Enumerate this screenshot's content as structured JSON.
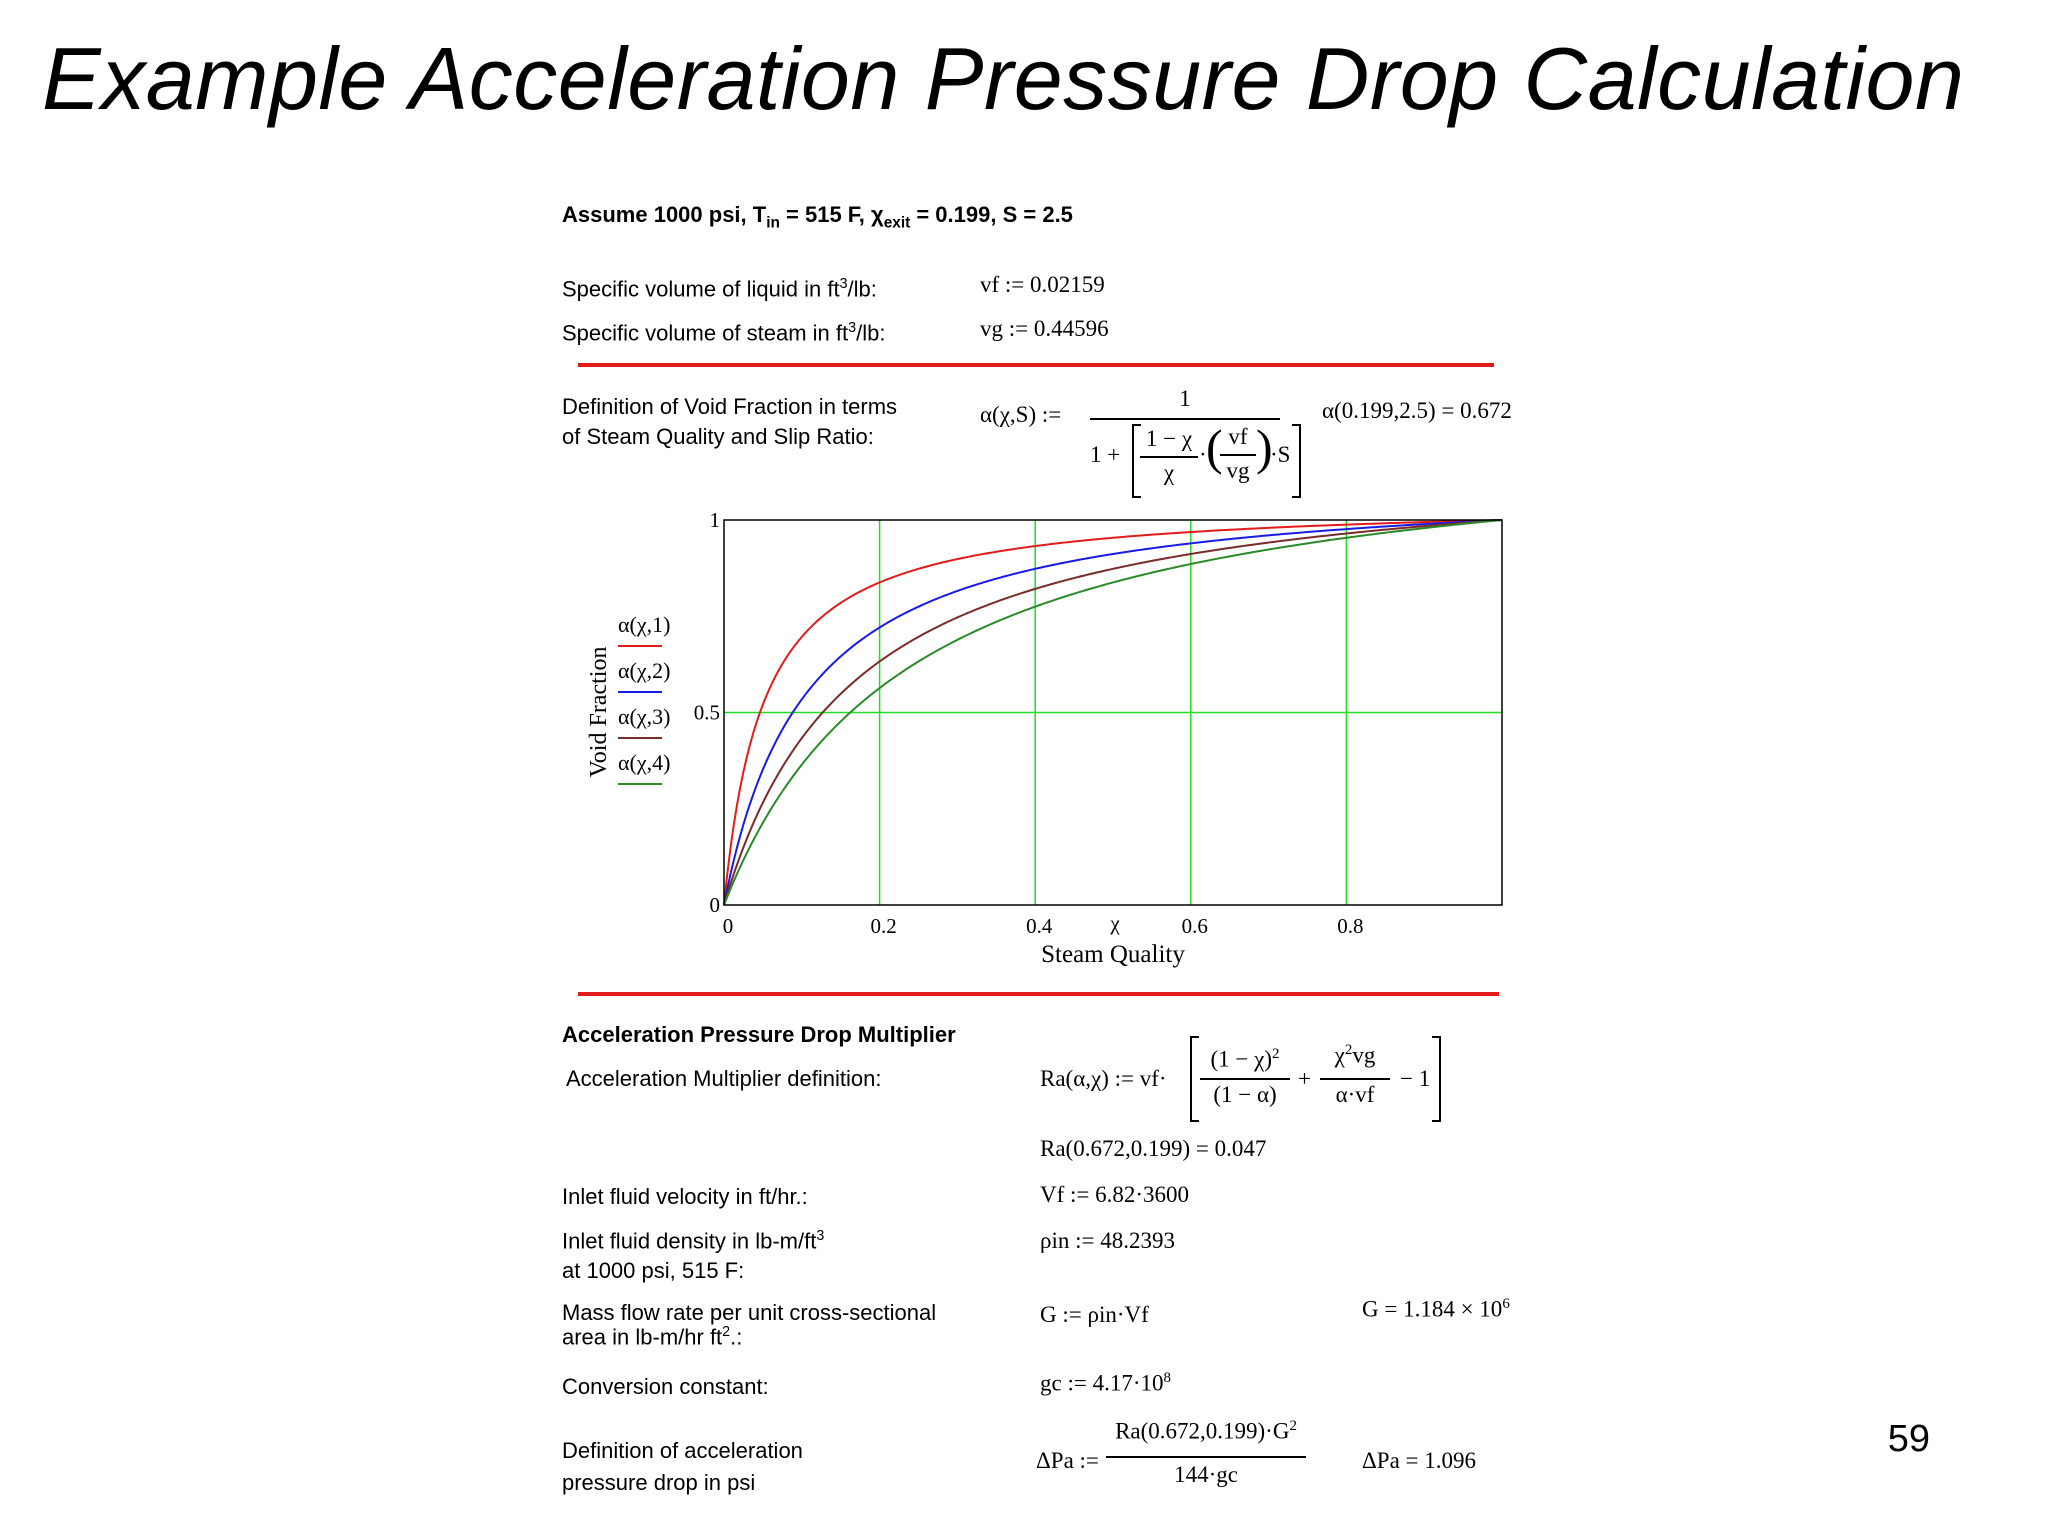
{
  "title": "Example Acceleration Pressure Drop Calculation",
  "page_number": "59",
  "assume": {
    "prefix": "Assume 1000 psi, T",
    "tin_sub": "in",
    "mid": " = 515 F, ",
    "chi": "χ",
    "exit_sub": "exit",
    "rest": " = 0.199, S = 2.5"
  },
  "liquid": {
    "label": "Specific volume of liquid in ft",
    "sup": "3",
    "suffix": "/lb:",
    "eq": "vf := 0.02159"
  },
  "steam": {
    "label": "Specific volume of steam in ft",
    "sup": "3",
    "suffix": "/lb:",
    "eq": "vg := 0.44596"
  },
  "void_def": {
    "label_line1": "Definition of Void Fraction in terms",
    "label_line2": "of Steam Quality and Slip Ratio:",
    "lhs": "α(χ,S) :=",
    "num": "1",
    "one_plus": "1 +",
    "frac_num": "1 − χ",
    "frac_den": "χ",
    "vf": "vf",
    "vg": "vg",
    "dot": "·",
    "s": "·S",
    "result": "α(0.199,2.5) = 0.672"
  },
  "chart_data": {
    "type": "line",
    "xlabel": "Steam Quality",
    "xvar": "χ",
    "ylabel": "Void Fraction",
    "xlim": [
      0,
      1
    ],
    "ylim": [
      0,
      1
    ],
    "x_ticks": [
      "0",
      "0.2",
      "0.4",
      "0.6",
      "0.8"
    ],
    "y_ticks": [
      "0",
      "0.5",
      "1"
    ],
    "grid": true,
    "legend_position": "left",
    "vf": 0.02159,
    "vg": 0.44596,
    "series": [
      {
        "name": "α(χ,1)",
        "slip": 1,
        "color": "#e31b1b"
      },
      {
        "name": "α(χ,2)",
        "slip": 2,
        "color": "#1a1ae6"
      },
      {
        "name": "α(χ,3)",
        "slip": 3,
        "color": "#7a2b2b"
      },
      {
        "name": "α(χ,4)",
        "slip": 4,
        "color": "#2a8a2a"
      }
    ],
    "colors": {
      "grid": "#22dd22",
      "frame": "#000000"
    }
  },
  "accel": {
    "heading": "Acceleration Pressure Drop Multiplier",
    "def_label": "Acceleration Multiplier definition:",
    "lhs": "Ra(α,χ) := vf·",
    "t1_num": "(1 − χ)",
    "t1_num_sup": "2",
    "t1_den": "(1 − α)",
    "plus": "+",
    "t2_num": "χ",
    "t2_num_sup": "2",
    "t2_num_rest": "vg",
    "t2_den": "α·vf",
    "minus_one": "− 1",
    "result": "Ra(0.672,0.199) = 0.047"
  },
  "velocity": {
    "label": "Inlet fluid velocity in ft/hr.:",
    "eq": "Vf := 6.82·3600"
  },
  "density": {
    "label1": "Inlet fluid density in lb-m/ft",
    "sup": "3",
    "label2": "at 1000 psi, 515 F:",
    "eq": "ρin := 48.2393"
  },
  "mass_flow": {
    "label1": "Mass flow rate per unit cross-sectional",
    "label2": "area in lb-m/hr ft",
    "sup": "2",
    "suffix": ".:",
    "eq": "G := ρin·Vf",
    "result": "G = 1.184 × 10",
    "result_sup": "6"
  },
  "conversion": {
    "label": "Conversion constant:",
    "eq": "gc := 4.17·10",
    "eq_sup": "8"
  },
  "accel_drop": {
    "label1": "Definition of acceleration",
    "label2": "pressure drop in psi",
    "lhs": "ΔPa :=",
    "num": "Ra(0.672,0.199)·G",
    "num_sup": "2",
    "den": "144·gc",
    "result": "ΔPa = 1.096"
  }
}
